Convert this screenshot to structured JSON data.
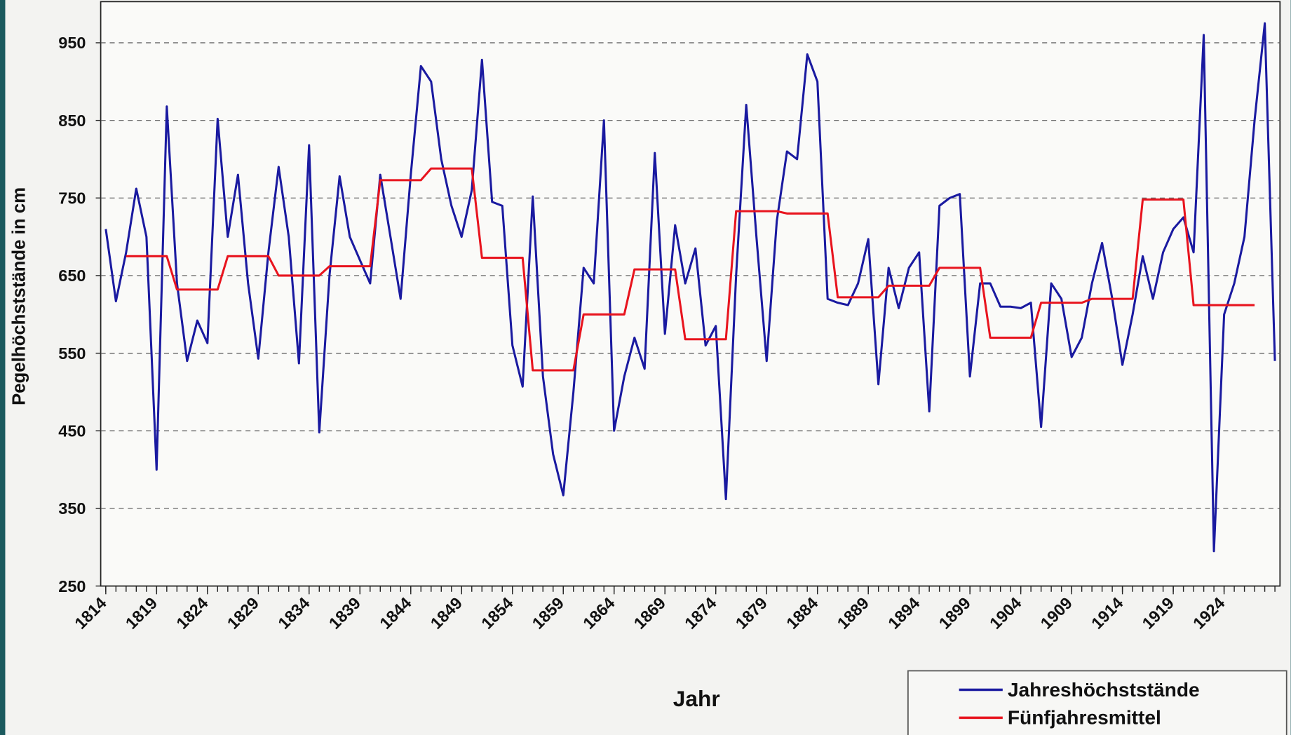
{
  "chart_data": {
    "type": "line",
    "xlabel": "Jahr",
    "ylabel": "Pegelhöchststände in cm",
    "x": [
      1814,
      1815,
      1816,
      1817,
      1818,
      1819,
      1820,
      1821,
      1822,
      1823,
      1824,
      1825,
      1826,
      1827,
      1828,
      1829,
      1830,
      1831,
      1832,
      1833,
      1834,
      1835,
      1836,
      1837,
      1838,
      1839,
      1840,
      1841,
      1842,
      1843,
      1844,
      1845,
      1846,
      1847,
      1848,
      1849,
      1850,
      1851,
      1852,
      1853,
      1854,
      1855,
      1856,
      1857,
      1858,
      1859,
      1860,
      1861,
      1862,
      1863,
      1864,
      1865,
      1866,
      1867,
      1868,
      1869,
      1870,
      1871,
      1872,
      1873,
      1874,
      1875,
      1876,
      1877,
      1878,
      1879,
      1880,
      1881,
      1882,
      1883,
      1884,
      1885,
      1886,
      1887,
      1888,
      1889,
      1890,
      1891,
      1892,
      1893,
      1894,
      1895,
      1896,
      1897,
      1898,
      1899,
      1900,
      1901,
      1902,
      1903,
      1904,
      1905,
      1906,
      1907,
      1908,
      1909,
      1910,
      1911,
      1912,
      1913,
      1914,
      1915,
      1916,
      1917,
      1918,
      1919,
      1920,
      1921,
      1922,
      1923,
      1924,
      1925,
      1926,
      1927,
      1928,
      1929
    ],
    "series": [
      {
        "name": "Jahreshöchststände",
        "color": "#1a1aa0",
        "values": [
          710,
          617,
          680,
          762,
          700,
          400,
          868,
          640,
          540,
          592,
          563,
          852,
          700,
          780,
          640,
          543,
          680,
          790,
          700,
          537,
          818,
          448,
          650,
          778,
          700,
          670,
          640,
          780,
          700,
          620,
          780,
          920,
          900,
          800,
          740,
          700,
          760,
          928,
          745,
          740,
          560,
          507,
          752,
          520,
          420,
          367,
          500,
          660,
          640,
          850,
          450,
          520,
          570,
          530,
          808,
          575,
          715,
          640,
          685,
          560,
          585,
          362,
          650,
          870,
          700,
          540,
          720,
          810,
          800,
          935,
          900,
          620,
          615,
          612,
          640,
          697,
          510,
          660,
          608,
          660,
          680,
          475,
          740,
          750,
          755,
          520,
          640,
          640,
          610,
          610,
          608,
          615,
          455,
          640,
          620,
          545,
          570,
          640,
          692,
          620,
          535,
          600,
          675,
          620,
          680,
          710,
          725,
          680,
          960,
          295,
          600,
          640,
          700,
          850,
          975,
          540
        ]
      },
      {
        "name": "Fünfjahresmittel",
        "color": "#e8141e",
        "values": [
          null,
          null,
          675,
          675,
          675,
          675,
          675,
          632,
          632,
          632,
          632,
          632,
          675,
          675,
          675,
          675,
          675,
          650,
          650,
          650,
          650,
          650,
          662,
          662,
          662,
          662,
          662,
          773,
          773,
          773,
          773,
          773,
          788,
          788,
          788,
          788,
          788,
          673,
          673,
          673,
          673,
          673,
          528,
          528,
          528,
          528,
          528,
          600,
          600,
          600,
          600,
          600,
          658,
          658,
          658,
          658,
          658,
          568,
          568,
          568,
          568,
          568,
          733,
          733,
          733,
          733,
          733,
          730,
          730,
          730,
          730,
          730,
          622,
          622,
          622,
          622,
          622,
          637,
          637,
          637,
          637,
          637,
          660,
          660,
          660,
          660,
          660,
          570,
          570,
          570,
          570,
          570,
          615,
          615,
          615,
          615,
          615,
          620,
          620,
          620,
          620,
          620,
          748,
          748,
          748,
          748,
          748,
          612,
          612,
          612,
          612,
          612,
          612,
          612,
          null,
          null
        ]
      }
    ],
    "xlim": [
      1813.5,
      1929.5
    ],
    "xticks": [
      1814,
      1819,
      1824,
      1829,
      1834,
      1839,
      1844,
      1849,
      1854,
      1859,
      1864,
      1869,
      1874,
      1879,
      1884,
      1889,
      1894,
      1899,
      1904,
      1909,
      1914,
      1919,
      1924
    ],
    "ylim": [
      250,
      1003
    ],
    "yticks": [
      250,
      350,
      450,
      550,
      650,
      750,
      850,
      950
    ],
    "grid": true,
    "legend": "bottom-right"
  }
}
